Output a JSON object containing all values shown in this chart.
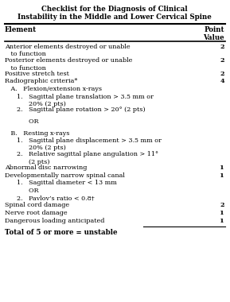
{
  "title_line1": "Checklist for the Diagnosis of Clinical",
  "title_line2": "Instability in the Middle and Lower Cervical Spine",
  "bg_color": "#ffffff",
  "fig_width": 2.89,
  "fig_height": 3.8,
  "dpi": 100,
  "font_size": 5.8,
  "title_font_size": 6.2,
  "header_font_size": 6.2,
  "footer_font_size": 6.2,
  "rows": [
    {
      "text": "Anterior elements destroyed or unable",
      "text2": "   to function",
      "value": "2"
    },
    {
      "text": "Posterior elements destroyed or unable",
      "text2": "   to function",
      "value": "2"
    },
    {
      "text": "Positive stretch test",
      "text2": "",
      "value": "2"
    },
    {
      "text": "Radiographic criteria*",
      "text2": "",
      "value": "4"
    },
    {
      "text": "   A.   Flexion/extension x-rays",
      "text2": "",
      "value": ""
    },
    {
      "text": "      1.   Sagittal plane translation > 3.5 mm or",
      "text2": "            20% (2 pts)",
      "value": ""
    },
    {
      "text": "      2.   Sagittal plane rotation > 20° (2 pts)",
      "text2": "",
      "value": ""
    },
    {
      "text": "",
      "text2": "",
      "value": ""
    },
    {
      "text": "            OR",
      "text2": "",
      "value": ""
    },
    {
      "text": "",
      "text2": "",
      "value": ""
    },
    {
      "text": "   B.   Resting x-rays",
      "text2": "",
      "value": ""
    },
    {
      "text": "      1.   Sagittal plane displacement > 3.5 mm or",
      "text2": "            20% (2 pts)",
      "value": ""
    },
    {
      "text": "      2.   Relative sagittal plane angulation > 11°",
      "text2": "            (2 pts)",
      "value": ""
    },
    {
      "text": "Abnormal disc narrowing",
      "text2": "",
      "value": "1"
    },
    {
      "text": "Developmentally narrow spinal canal",
      "text2": "",
      "value": "1"
    },
    {
      "text": "      1.   Sagittal diameter < 13 mm",
      "text2": "",
      "value": ""
    },
    {
      "text": "            OR",
      "text2": "",
      "value": ""
    },
    {
      "text": "      2.   Pavlov’s ratio < 0.8†",
      "text2": "",
      "value": ""
    },
    {
      "text": "Spinal cord damage",
      "text2": "",
      "value": "2"
    },
    {
      "text": "Nerve root damage",
      "text2": "",
      "value": "1"
    },
    {
      "text": "Dangerous loading anticipated",
      "text2": "",
      "value": "1"
    }
  ],
  "footer": "Total of 5 or more = unstable"
}
